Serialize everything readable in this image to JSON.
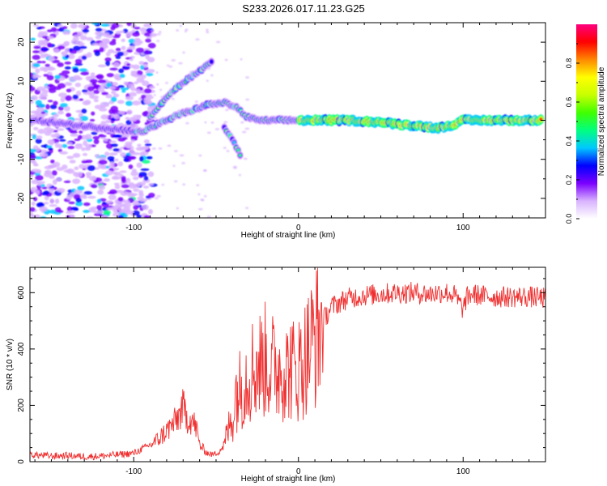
{
  "title": "S233.2026.017.11.23.G25",
  "chart_data": [
    {
      "type": "heatmap",
      "name": "spectrogram",
      "xlabel": "Height of straight line (km)",
      "ylabel": "Frequency (Hz)",
      "xlim": [
        -163,
        150
      ],
      "ylim": [
        -25,
        25
      ],
      "xticks": [
        -100,
        0,
        100
      ],
      "xtick_labels": [
        "-100",
        "0",
        "100"
      ],
      "yticks": [
        -20,
        -10,
        0,
        10,
        20
      ],
      "ytick_labels": [
        "-20",
        "-10",
        "0",
        "10",
        "20"
      ],
      "grid": false,
      "ridges": [
        {
          "name": "main-ridge",
          "points": [
            [
              -160,
              0
            ],
            [
              -130,
              -1.5
            ],
            [
              -105,
              -2.5
            ],
            [
              -95,
              -3
            ],
            [
              -85,
              -1
            ],
            [
              -75,
              1
            ],
            [
              -65,
              2.5
            ],
            [
              -55,
              4
            ],
            [
              -45,
              4.5
            ],
            [
              -38,
              3.5
            ],
            [
              -32,
              1
            ],
            [
              -25,
              0
            ],
            [
              -15,
              0
            ],
            [
              -5,
              0
            ],
            [
              5,
              0
            ],
            [
              30,
              0
            ],
            [
              50,
              -0.5
            ],
            [
              60,
              -1
            ],
            [
              75,
              -1.5
            ],
            [
              85,
              -2
            ],
            [
              95,
              -1
            ],
            [
              100,
              0
            ],
            [
              110,
              0
            ],
            [
              130,
              0
            ],
            [
              148,
              0
            ]
          ]
        },
        {
          "name": "upper-branch",
          "points": [
            [
              -90,
              1
            ],
            [
              -80,
              6
            ],
            [
              -72,
              9
            ],
            [
              -62,
              12
            ],
            [
              -52,
              15
            ]
          ]
        },
        {
          "name": "lower-branch",
          "points": [
            [
              -45,
              -2
            ],
            [
              -40,
              -5
            ],
            [
              -35,
              -9
            ]
          ]
        }
      ],
      "colorbar": {
        "label": "Normalized spectral amplitude",
        "ticks": [
          0.0,
          0.2,
          0.4,
          0.6,
          0.8
        ],
        "tick_labels": [
          "0.0",
          "0.2",
          "0.4",
          "0.6",
          "0.8"
        ],
        "range": [
          0,
          1
        ],
        "colors": [
          "#ffffff",
          "#d9b3ff",
          "#7b00ff",
          "#0000ff",
          "#00c8ff",
          "#00ff80",
          "#40ff00",
          "#c8ff00",
          "#ffff00",
          "#ff8800",
          "#ff0000",
          "#ff0080"
        ]
      }
    },
    {
      "type": "line",
      "name": "snr",
      "xlabel": "Height of straight line (km)",
      "ylabel": "SNR (10 * v/v)",
      "xlim": [
        -163,
        150
      ],
      "ylim": [
        0,
        690
      ],
      "xticks": [
        -100,
        0,
        100
      ],
      "xtick_labels": [
        "-100",
        "0",
        "100"
      ],
      "yticks": [
        0,
        200,
        400,
        600
      ],
      "ytick_labels": [
        "0",
        "200",
        "400",
        "600"
      ],
      "grid": false,
      "color": "#f03030",
      "series": [
        {
          "name": "SNR",
          "x": [
            -163,
            -150,
            -140,
            -130,
            -120,
            -110,
            -100,
            -95,
            -90,
            -85,
            -80,
            -75,
            -72,
            -70,
            -68,
            -65,
            -62,
            -60,
            -57,
            -55,
            -52,
            -50,
            -48,
            -45,
            -43,
            -40,
            -38,
            -35,
            -32,
            -30,
            -28,
            -25,
            -22,
            -20,
            -17,
            -15,
            -12,
            -10,
            -7,
            -5,
            -2,
            0,
            3,
            5,
            8,
            10,
            13,
            15,
            18,
            20,
            25,
            30,
            40,
            50,
            60,
            70,
            80,
            85,
            90,
            95,
            98,
            100,
            102,
            105,
            110,
            120,
            130,
            140,
            150
          ],
          "y": [
            25,
            20,
            22,
            18,
            20,
            25,
            30,
            45,
            60,
            80,
            110,
            140,
            170,
            190,
            160,
            150,
            120,
            60,
            40,
            30,
            25,
            30,
            40,
            60,
            110,
            150,
            250,
            260,
            300,
            320,
            330,
            340,
            350,
            360,
            330,
            340,
            330,
            340,
            320,
            340,
            320,
            330,
            360,
            380,
            420,
            440,
            470,
            500,
            530,
            550,
            565,
            580,
            590,
            595,
            600,
            600,
            595,
            600,
            600,
            590,
            560,
            540,
            580,
            595,
            590,
            585,
            585,
            585,
            580
          ]
        }
      ]
    }
  ]
}
